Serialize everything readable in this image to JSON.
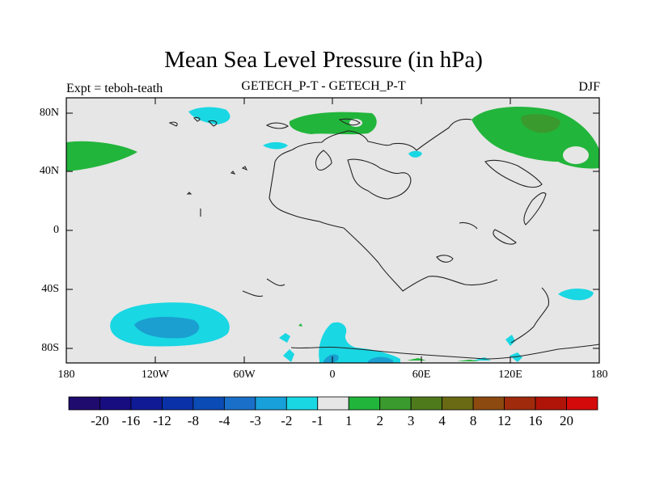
{
  "title": "Mean Sea Level Pressure (in hPa)",
  "subtitle_left": "Expt = teboh-teath",
  "subtitle_center": "GETECH_P-T - GETECH_P-T",
  "subtitle_right": "DJF",
  "lat_labels": [
    "80N",
    "40N",
    "0",
    "40S",
    "80S"
  ],
  "lon_labels": [
    "180",
    "120W",
    "60W",
    "0",
    "60E",
    "120E",
    "180"
  ],
  "colorbar": {
    "colors": [
      "#1f0a6e",
      "#170c80",
      "#0f1a94",
      "#0a31a8",
      "#0b4bb5",
      "#1a70c8",
      "#17a0d9",
      "#19d7e3",
      "#e6e6e6",
      "#22b53b",
      "#3a9a2d",
      "#4f7a1c",
      "#6a6a14",
      "#8c4a10",
      "#a02a0c",
      "#b01408",
      "#d40a0a"
    ],
    "labels": [
      "-20",
      "-16",
      "-12",
      "-8",
      "-4",
      "-3",
      "-2",
      "-1",
      "1",
      "2",
      "3",
      "4",
      "8",
      "12",
      "16",
      "20"
    ]
  }
}
